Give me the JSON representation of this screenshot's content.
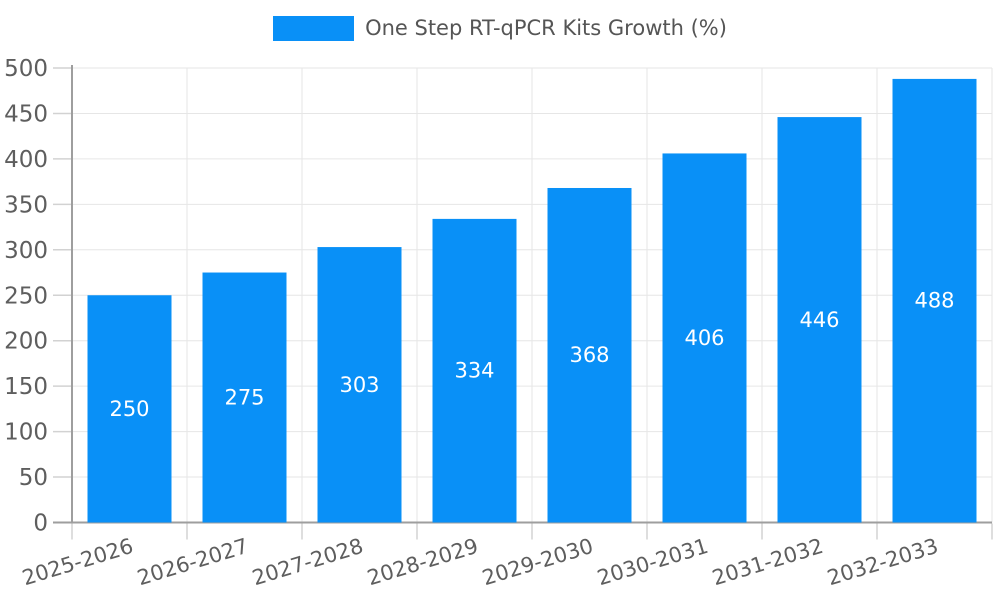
{
  "chart_data": {
    "type": "bar",
    "title": "",
    "legend": {
      "label": "One Step RT-qPCR Kits Growth (%)",
      "position": "top-center"
    },
    "categories": [
      "2025-2026",
      "2026-2027",
      "2027-2028",
      "2028-2029",
      "2029-2030",
      "2030-2031",
      "2031-2032",
      "2032-2033"
    ],
    "series": [
      {
        "name": "One Step RT-qPCR Kits Growth (%)",
        "values": [
          250,
          275,
          303,
          334,
          368,
          406,
          446,
          488
        ]
      }
    ],
    "data_labels": [
      "250",
      "275",
      "303",
      "334",
      "368",
      "406",
      "446",
      "488"
    ],
    "xlabel": "",
    "ylabel": "",
    "ylim": [
      0,
      500
    ],
    "ytick_step": 50,
    "yticks": [
      "0",
      "50",
      "100",
      "150",
      "200",
      "250",
      "300",
      "350",
      "400",
      "450",
      "500"
    ],
    "grid": true,
    "colors": {
      "bar": "#0990F7",
      "grid_line": "#e6e6e6",
      "axis_line": "#9e9e9e",
      "tick_mark": "#d2d2d2",
      "tick_label": "#5e5e5e",
      "legend_text": "#555555",
      "data_label": "#ffffff",
      "background": "#ffffff"
    }
  }
}
